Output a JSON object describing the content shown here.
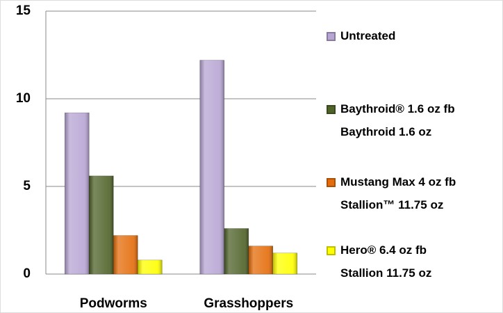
{
  "chart_data": {
    "type": "bar",
    "categories": [
      "Podworms",
      "Grasshoppers"
    ],
    "series": [
      {
        "name": "Untreated",
        "color": "#b7a5d4",
        "values": [
          9.2,
          12.2
        ]
      },
      {
        "name": "Baythroid® 1.6 oz fb\nBaythroid 1.6 oz",
        "color": "#4f6228",
        "values": [
          5.6,
          2.6
        ]
      },
      {
        "name": "Mustang Max 4 oz fb\nStallion™ 11.75 oz",
        "color": "#e46c0a",
        "values": [
          2.2,
          1.6
        ]
      },
      {
        "name": "Hero® 6.4 oz fb\nStallion 11.75 oz",
        "color": "#ffff00",
        "values": [
          0.8,
          1.2
        ]
      }
    ],
    "ylim": [
      0,
      15
    ],
    "yticks": [
      0,
      5,
      10,
      15
    ],
    "grid": true,
    "legend": "right"
  }
}
